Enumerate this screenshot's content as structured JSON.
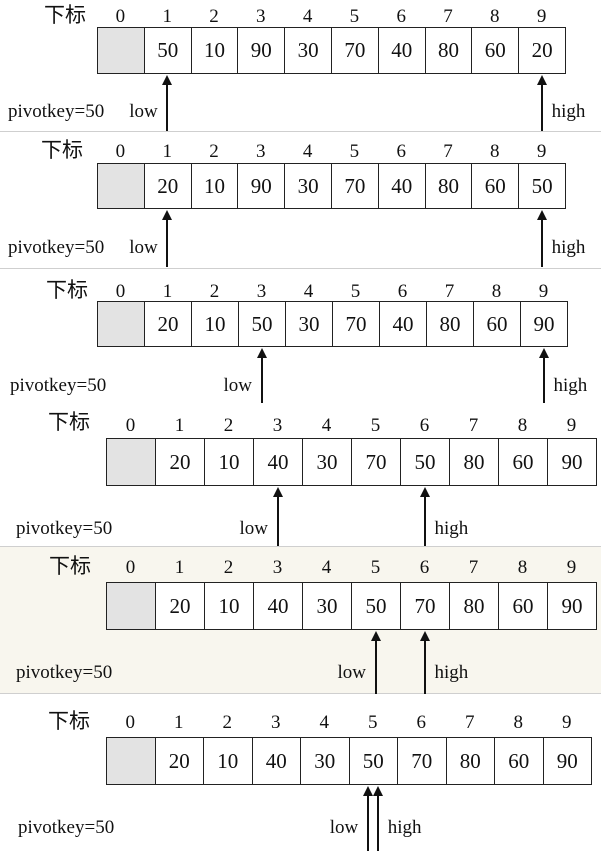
{
  "colors": {
    "cell_border": "#222222",
    "empty_cell": "#e3e3e3",
    "arrow": "#111111"
  },
  "diagram": {
    "steps": [
      {
        "title": "下标",
        "indices": [
          "0",
          "1",
          "2",
          "3",
          "4",
          "5",
          "6",
          "7",
          "8",
          "9"
        ],
        "values": [
          "",
          "50",
          "10",
          "90",
          "30",
          "70",
          "40",
          "80",
          "60",
          "20"
        ],
        "pivot_label": "pivotkey=50",
        "low_label": "low",
        "low_index": 1,
        "high_label": "high",
        "high_index": 9
      },
      {
        "title": "下标",
        "indices": [
          "0",
          "1",
          "2",
          "3",
          "4",
          "5",
          "6",
          "7",
          "8",
          "9"
        ],
        "values": [
          "",
          "20",
          "10",
          "90",
          "30",
          "70",
          "40",
          "80",
          "60",
          "50"
        ],
        "pivot_label": "pivotkey=50",
        "low_label": "low",
        "low_index": 1,
        "high_label": "high",
        "high_index": 9
      },
      {
        "title": "下标",
        "indices": [
          "0",
          "1",
          "2",
          "3",
          "4",
          "5",
          "6",
          "7",
          "8",
          "9"
        ],
        "values": [
          "",
          "20",
          "10",
          "50",
          "30",
          "70",
          "40",
          "80",
          "60",
          "90"
        ],
        "pivot_label": "pivotkey=50",
        "low_label": "low",
        "low_index": 3,
        "high_label": "high",
        "high_index": 9
      },
      {
        "title": "下标",
        "indices": [
          "0",
          "1",
          "2",
          "3",
          "4",
          "5",
          "6",
          "7",
          "8",
          "9"
        ],
        "values": [
          "",
          "20",
          "10",
          "40",
          "30",
          "70",
          "50",
          "80",
          "60",
          "90"
        ],
        "pivot_label": "pivotkey=50",
        "low_label": "low",
        "low_index": 3,
        "high_label": "high",
        "high_index": 6
      },
      {
        "title": "下标",
        "indices": [
          "0",
          "1",
          "2",
          "3",
          "4",
          "5",
          "6",
          "7",
          "8",
          "9"
        ],
        "values": [
          "",
          "20",
          "10",
          "40",
          "30",
          "50",
          "70",
          "80",
          "60",
          "90"
        ],
        "pivot_label": "pivotkey=50",
        "low_label": "low",
        "low_index": 5,
        "high_label": "high",
        "high_index": 6
      },
      {
        "title": "下标",
        "indices": [
          "0",
          "1",
          "2",
          "3",
          "4",
          "5",
          "6",
          "7",
          "8",
          "9"
        ],
        "values": [
          "",
          "20",
          "10",
          "40",
          "30",
          "50",
          "70",
          "80",
          "60",
          "90"
        ],
        "pivot_label": "pivotkey=50",
        "low_label": "low",
        "low_index": 5,
        "high_label": "high",
        "high_index": 5
      }
    ]
  }
}
